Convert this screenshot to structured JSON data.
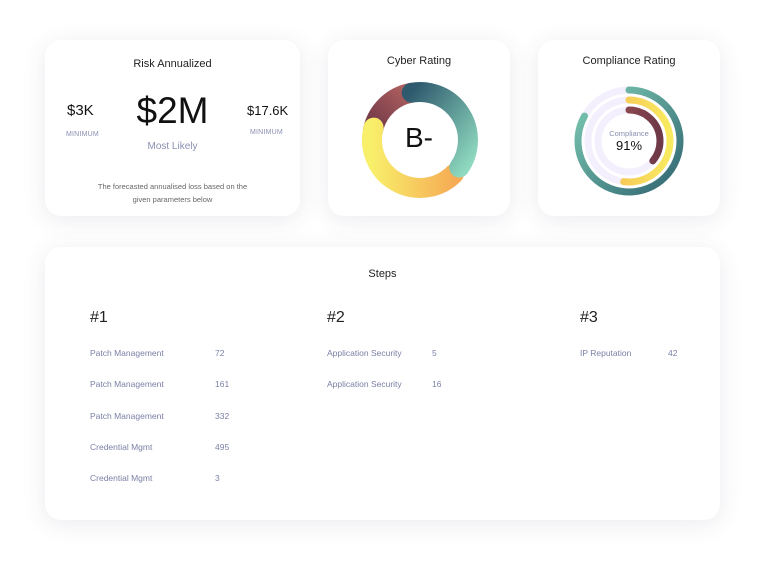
{
  "risk": {
    "title": "Risk Annualized",
    "min_value": "$3K",
    "min_label": "MINIMUM",
    "likely_value": "$2M",
    "likely_label": "Most Likely",
    "max_value": "$17.6K",
    "max_label": "MINIMUM",
    "description_line1": "The forecasted annualised loss based on the",
    "description_line2": "given parameters below"
  },
  "cyber": {
    "title": "Cyber Rating",
    "grade": "B-"
  },
  "compliance": {
    "title": "Compliance Rating",
    "label": "Compliance",
    "value": "91%",
    "rings_percent": [
      83,
      52,
      36
    ],
    "colors": [
      "#2f6470",
      "#f6c64f",
      "#8a3b48"
    ]
  },
  "steps": {
    "title": "Steps",
    "groups": [
      {
        "heading": "#1",
        "items": [
          {
            "name": "Patch Management",
            "value": "72"
          },
          {
            "name": "Patch Management",
            "value": "161"
          },
          {
            "name": "Patch Management",
            "value": "332"
          },
          {
            "name": "Credential Mgmt",
            "value": "495"
          },
          {
            "name": "Credential Mgmt",
            "value": "3"
          }
        ]
      },
      {
        "heading": "#2",
        "items": [
          {
            "name": "Application Security",
            "value": "5"
          },
          {
            "name": "Application Security",
            "value": "16"
          }
        ]
      },
      {
        "heading": "#3",
        "items": [
          {
            "name": "IP Reputation",
            "value": "42"
          }
        ]
      }
    ]
  }
}
